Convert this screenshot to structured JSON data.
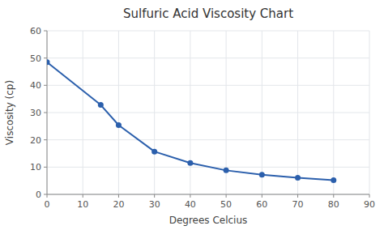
{
  "chart_data": {
    "type": "line",
    "title": "Sulfuric Acid Viscosity Chart",
    "xlabel": "Degrees Celcius",
    "ylabel": "Viscosity (cp)",
    "x": [
      0,
      15,
      20,
      30,
      40,
      50,
      60,
      70,
      80
    ],
    "values": [
      48.5,
      32.8,
      25.4,
      15.7,
      11.5,
      8.8,
      7.2,
      6.1,
      5.2
    ],
    "xlim": [
      0,
      90
    ],
    "ylim": [
      0,
      60
    ],
    "xticks": [
      0,
      10,
      20,
      30,
      40,
      50,
      60,
      70,
      80,
      90
    ],
    "yticks": [
      0,
      10,
      20,
      30,
      40,
      50,
      60
    ],
    "color": "#2b5fac",
    "marker": "circle",
    "grid": true
  }
}
